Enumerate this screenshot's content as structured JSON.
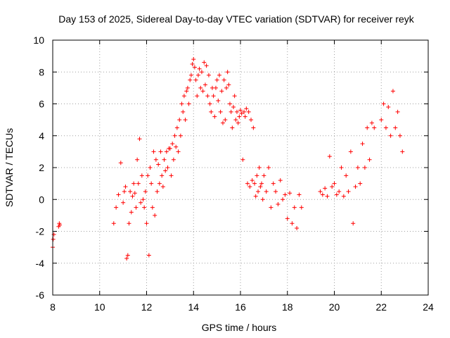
{
  "chart_data": {
    "type": "scatter",
    "title": "Day 153 of 2025, Sidereal Day-to-day VTEC variation (SDTVAR) for receiver reyk",
    "xlabel": "GPS time / hours",
    "ylabel": "SDTVAR / TECUs",
    "xlim": [
      8,
      24
    ],
    "ylim": [
      -6,
      10
    ],
    "xticks": [
      8,
      10,
      12,
      14,
      16,
      18,
      20,
      22,
      24
    ],
    "yticks": [
      -6,
      -4,
      -2,
      0,
      2,
      4,
      6,
      8,
      10
    ],
    "xtick_labels": [
      "8",
      "10",
      "12",
      "14",
      "16",
      "18",
      "20",
      "22",
      "24"
    ],
    "ytick_labels": [
      "-6",
      "-4",
      "-2",
      "0",
      "2",
      "4",
      "6",
      "8",
      "10"
    ],
    "grid": true,
    "marker": "+",
    "color": "#ff0000",
    "series": [
      {
        "name": "SDTVAR",
        "x": [
          8.0,
          8.02,
          8.05,
          8.25,
          8.28,
          8.3,
          10.6,
          10.7,
          10.8,
          10.9,
          11.0,
          11.05,
          11.1,
          11.15,
          11.2,
          11.25,
          11.3,
          11.35,
          11.4,
          11.45,
          11.5,
          11.55,
          11.6,
          11.65,
          11.7,
          11.75,
          11.8,
          11.85,
          11.9,
          11.95,
          12.0,
          12.05,
          12.1,
          12.15,
          12.2,
          12.25,
          12.3,
          12.35,
          12.4,
          12.45,
          12.5,
          12.55,
          12.6,
          12.65,
          12.7,
          12.75,
          12.8,
          12.85,
          12.9,
          12.95,
          13.0,
          13.05,
          13.1,
          13.15,
          13.2,
          13.25,
          13.3,
          13.35,
          13.4,
          13.45,
          13.5,
          13.55,
          13.6,
          13.65,
          13.7,
          13.75,
          13.8,
          13.85,
          13.9,
          13.95,
          14.0,
          14.05,
          14.1,
          14.15,
          14.2,
          14.25,
          14.3,
          14.35,
          14.4,
          14.45,
          14.5,
          14.55,
          14.6,
          14.65,
          14.7,
          14.75,
          14.8,
          14.85,
          14.9,
          14.95,
          15.0,
          15.05,
          15.1,
          15.15,
          15.2,
          15.25,
          15.3,
          15.35,
          15.4,
          15.45,
          15.5,
          15.55,
          15.6,
          15.65,
          15.7,
          15.75,
          15.8,
          15.85,
          15.9,
          15.95,
          16.0,
          16.05,
          16.1,
          16.15,
          16.2,
          16.25,
          16.3,
          16.35,
          16.4,
          16.45,
          16.5,
          16.55,
          16.6,
          16.65,
          16.7,
          16.75,
          16.8,
          16.85,
          16.9,
          16.95,
          17.0,
          17.1,
          17.2,
          17.3,
          17.4,
          17.5,
          17.6,
          17.7,
          17.8,
          17.9,
          18.0,
          18.1,
          18.2,
          18.3,
          18.4,
          18.5,
          18.6,
          19.4,
          19.5,
          19.6,
          19.7,
          19.8,
          19.9,
          20.0,
          20.1,
          20.2,
          20.3,
          20.4,
          20.5,
          20.6,
          20.7,
          20.8,
          20.9,
          21.0,
          21.1,
          21.2,
          21.3,
          21.4,
          21.5,
          21.6,
          21.7,
          22.0,
          22.1,
          22.2,
          22.3,
          22.4,
          22.5,
          22.6,
          22.7,
          22.8,
          22.9
        ],
        "y": [
          -3.0,
          -2.5,
          -2.2,
          -1.7,
          -1.5,
          -1.6,
          -1.5,
          -0.5,
          0.3,
          2.3,
          -0.2,
          0.5,
          0.8,
          -3.7,
          -3.5,
          -1.5,
          0.5,
          -0.8,
          0.2,
          1.0,
          0.4,
          -0.5,
          2.5,
          1.0,
          3.8,
          -0.2,
          1.5,
          0.0,
          -0.5,
          0.5,
          -1.5,
          1.5,
          -3.5,
          2.0,
          1.0,
          -0.5,
          3.0,
          -1.0,
          2.5,
          0.5,
          2.2,
          1.0,
          3.0,
          1.5,
          0.8,
          2.5,
          1.8,
          3.0,
          2.0,
          3.2,
          3.2,
          1.5,
          3.5,
          2.5,
          4.0,
          3.3,
          4.5,
          3.0,
          5.0,
          4.0,
          6.0,
          5.5,
          6.5,
          5.0,
          6.8,
          7.0,
          6.0,
          7.5,
          7.8,
          8.5,
          8.8,
          8.3,
          7.5,
          6.5,
          7.8,
          8.2,
          7.0,
          8.0,
          6.8,
          8.6,
          7.2,
          8.4,
          6.5,
          7.8,
          6.0,
          5.5,
          7.0,
          6.5,
          5.2,
          7.0,
          7.5,
          6.2,
          7.8,
          5.5,
          6.8,
          4.8,
          7.5,
          5.0,
          7.0,
          8.0,
          7.2,
          6.0,
          5.5,
          4.5,
          5.8,
          6.5,
          5.0,
          5.5,
          4.8,
          5.2,
          5.6,
          5.4,
          2.5,
          5.5,
          5.2,
          5.7,
          1.0,
          5.5,
          0.8,
          5.0,
          1.2,
          4.5,
          1.0,
          0.2,
          1.5,
          0.5,
          2.0,
          0.8,
          1.0,
          0.0,
          1.5,
          0.5,
          2.0,
          -0.5,
          1.0,
          0.5,
          -0.3,
          1.2,
          0.0,
          0.3,
          -1.2,
          0.4,
          -1.5,
          -0.5,
          -1.8,
          0.3,
          -0.5,
          0.5,
          0.3,
          0.7,
          0.2,
          2.7,
          0.8,
          1.0,
          0.3,
          0.5,
          2.0,
          0.2,
          1.5,
          0.5,
          3.0,
          -1.5,
          0.8,
          2.0,
          1.0,
          3.5,
          2.0,
          4.5,
          2.5,
          4.8,
          4.5,
          5.0,
          6.0,
          4.5,
          5.8,
          4.0,
          6.8,
          4.5,
          5.5,
          4.0,
          3.0
        ]
      }
    ]
  }
}
